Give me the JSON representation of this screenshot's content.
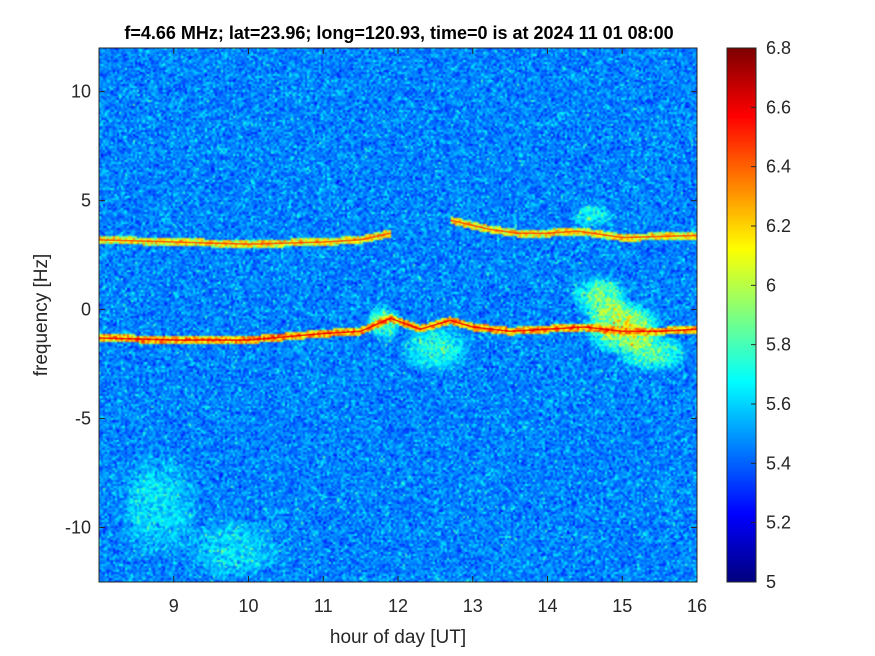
{
  "chart_data": {
    "type": "heatmap",
    "title": "f=4.66 MHz;  lat=23.96; long=120.93, time=0 is at 2024 11 01 08:00",
    "xlabel": "hour of day [UT]",
    "ylabel": "frequency [Hz]",
    "xlim": [
      8,
      16
    ],
    "ylim": [
      -12.5,
      12
    ],
    "x_ticks": [
      9,
      10,
      11,
      12,
      13,
      14,
      15,
      16
    ],
    "x_tick_labels": [
      "9",
      "10",
      "11",
      "12",
      "13",
      "14",
      "15",
      "16"
    ],
    "y_ticks": [
      -10,
      -5,
      0,
      5,
      10
    ],
    "y_tick_labels": [
      "-10",
      "-5",
      "0",
      "5",
      "10"
    ],
    "colorbar": {
      "colormap": "jet",
      "limits": [
        5,
        6.8
      ],
      "ticks": [
        5,
        5.2,
        5.4,
        5.6,
        5.8,
        6,
        6.2,
        6.4,
        6.6,
        6.8
      ],
      "tick_labels": [
        "5",
        "5.2",
        "5.4",
        "5.6",
        "5.8",
        "6",
        "6.2",
        "6.4",
        "6.6",
        "6.8"
      ]
    },
    "background_level": 5.45,
    "traces": [
      {
        "points": [
          [
            8.0,
            -1.3
          ],
          [
            9.0,
            -1.4
          ],
          [
            10.0,
            -1.4
          ],
          [
            11.0,
            -1.1
          ],
          [
            11.5,
            -1.0
          ],
          [
            11.9,
            -0.4
          ],
          [
            12.3,
            -0.9
          ],
          [
            12.7,
            -0.5
          ],
          [
            13.0,
            -0.8
          ],
          [
            13.5,
            -1.0
          ],
          [
            14.0,
            -0.9
          ],
          [
            14.5,
            -0.8
          ],
          [
            15.0,
            -1.0
          ],
          [
            15.5,
            -1.0
          ],
          [
            16.0,
            -0.9
          ]
        ],
        "level": 6.6
      },
      {
        "points": [
          [
            8.0,
            3.2
          ],
          [
            9.0,
            3.1
          ],
          [
            10.0,
            3.0
          ],
          [
            11.0,
            3.1
          ],
          [
            11.5,
            3.2
          ],
          [
            11.9,
            3.5
          ]
        ],
        "level": 6.45
      },
      {
        "points": [
          [
            12.7,
            4.1
          ],
          [
            13.2,
            3.7
          ],
          [
            13.6,
            3.5
          ],
          [
            14.0,
            3.5
          ],
          [
            14.4,
            3.6
          ],
          [
            15.0,
            3.3
          ],
          [
            16.0,
            3.4
          ]
        ],
        "level": 6.45
      }
    ],
    "hotspots": [
      {
        "x": 15.0,
        "y": -0.8,
        "rx": 0.55,
        "ry": 1.3,
        "level": 6.3
      },
      {
        "x": 14.7,
        "y": 0.6,
        "rx": 0.4,
        "ry": 1.0,
        "level": 6.05
      },
      {
        "x": 15.4,
        "y": -2.0,
        "rx": 0.5,
        "ry": 0.9,
        "level": 5.95
      },
      {
        "x": 11.8,
        "y": -0.6,
        "rx": 0.25,
        "ry": 0.8,
        "level": 6.05
      },
      {
        "x": 12.5,
        "y": -1.8,
        "rx": 0.5,
        "ry": 1.2,
        "level": 5.85
      },
      {
        "x": 14.6,
        "y": 4.3,
        "rx": 0.3,
        "ry": 0.6,
        "level": 5.85
      },
      {
        "x": 8.8,
        "y": -9.0,
        "rx": 0.6,
        "ry": 2.5,
        "level": 5.7
      },
      {
        "x": 9.8,
        "y": -11.0,
        "rx": 0.7,
        "ry": 1.5,
        "level": 5.7
      }
    ]
  }
}
